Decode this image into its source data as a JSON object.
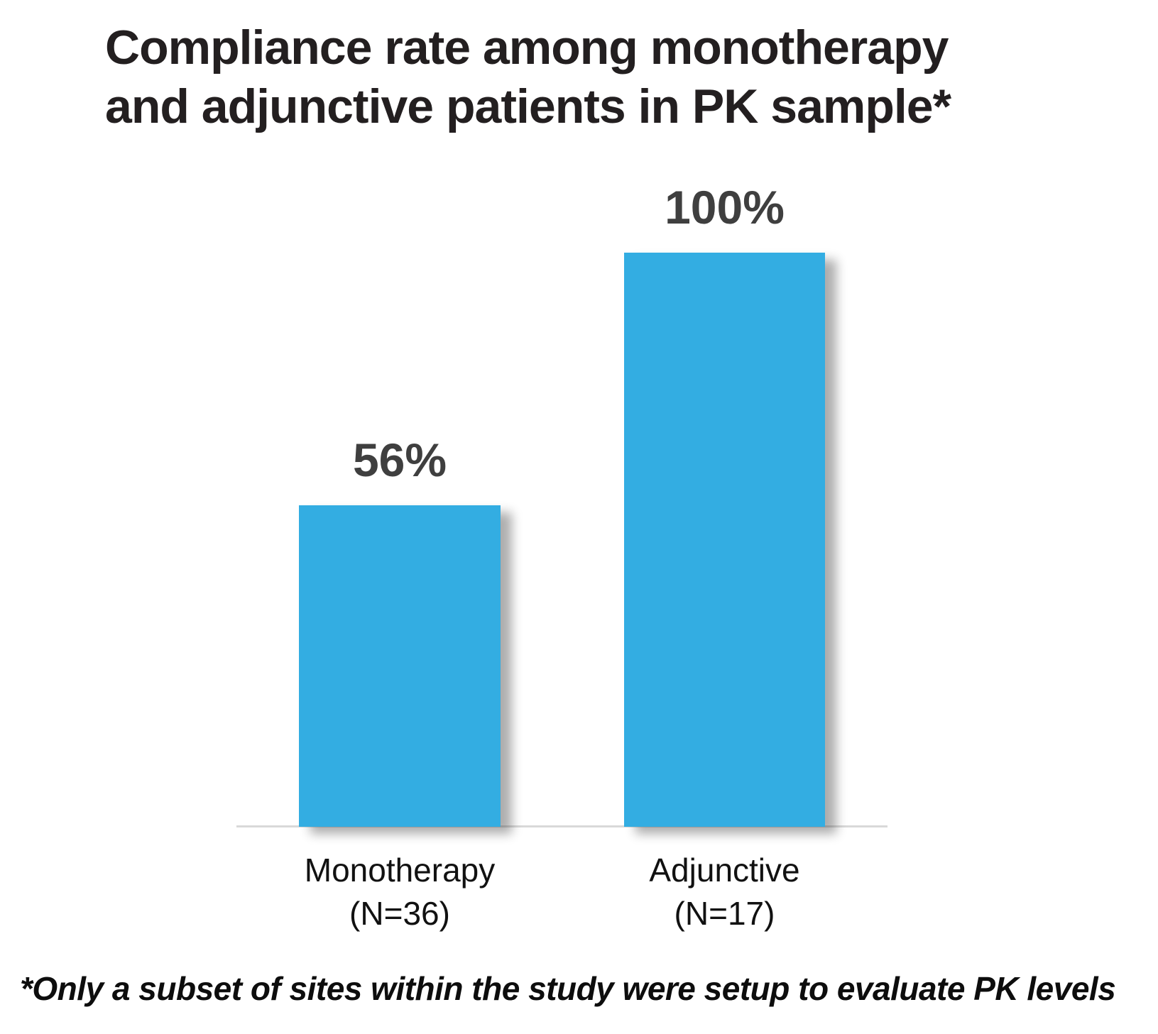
{
  "title": {
    "full": "Compliance rate among monotherapy and adjunctive patients in PK sample*",
    "lines": [
      "Compliance rate among monotherapy",
      "and adjunctive patients in PK sample*"
    ]
  },
  "chart_data": {
    "type": "bar",
    "title": "Compliance rate among monotherapy and adjunctive patients in PK sample*",
    "categories": [
      "Monotherapy (N=36)",
      "Adjunctive (N=17)"
    ],
    "category_lines": [
      [
        "Monotherapy",
        "(N=36)"
      ],
      [
        "Adjunctive",
        "(N=17)"
      ]
    ],
    "values": [
      56,
      100
    ],
    "value_labels": [
      "56%",
      "100%"
    ],
    "ylim": [
      0,
      100
    ],
    "bar_color": "#33ADE2",
    "grid": false,
    "legend": false,
    "xlabel": "",
    "ylabel": ""
  },
  "footnote": "*Only a subset of sites within the study were setup to evaluate PK levels",
  "colors": {
    "bar": "#33ADE2",
    "title_text": "#231F20",
    "value_label_text": "#3F3F3F",
    "category_label_text": "#111111",
    "axis_line": "#D9D9D9",
    "background": "#FFFFFF"
  }
}
